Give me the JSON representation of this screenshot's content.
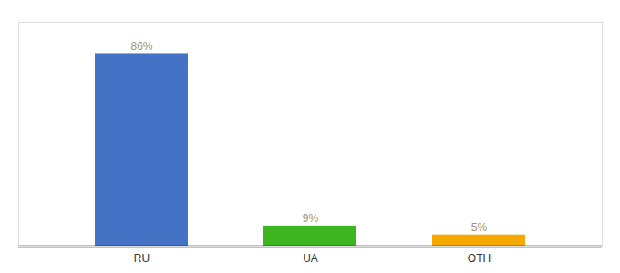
{
  "chart_data": {
    "type": "bar",
    "categories": [
      "RU",
      "UA",
      "OTH"
    ],
    "values": [
      86,
      9,
      5
    ],
    "value_labels": [
      "86%",
      "9%",
      "5%"
    ],
    "colors": [
      "#4472c4",
      "#3cb520",
      "#f5a800"
    ],
    "ylim": [
      0,
      100
    ],
    "data_labels": true,
    "tick_labels": "x"
  }
}
